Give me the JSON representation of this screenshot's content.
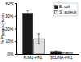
{
  "chart_data": {
    "type": "bar",
    "categories": [
      "KIM1-PK1",
      "pcDNA-PK1"
    ],
    "series": [
      {
        "name": "E. coli",
        "color": "#1a1a1a",
        "values": [
          32,
          2
        ],
        "errors": [
          2,
          0.5
        ]
      },
      {
        "name": "S. aureus",
        "color": "#e0e0e0",
        "values": [
          12,
          1
        ],
        "errors": [
          4,
          0.5
        ]
      }
    ],
    "ylabel": "% Phagocytosis",
    "ylim": [
      0,
      40
    ],
    "yticks": [
      {
        "value": 0,
        "label": "0%"
      },
      {
        "value": 10,
        "label": "10%"
      },
      {
        "value": 20,
        "label": "20%"
      },
      {
        "value": 30,
        "label": "30%"
      },
      {
        "value": 40,
        "label": "40%"
      }
    ],
    "grid": false,
    "legend": "upper right"
  }
}
